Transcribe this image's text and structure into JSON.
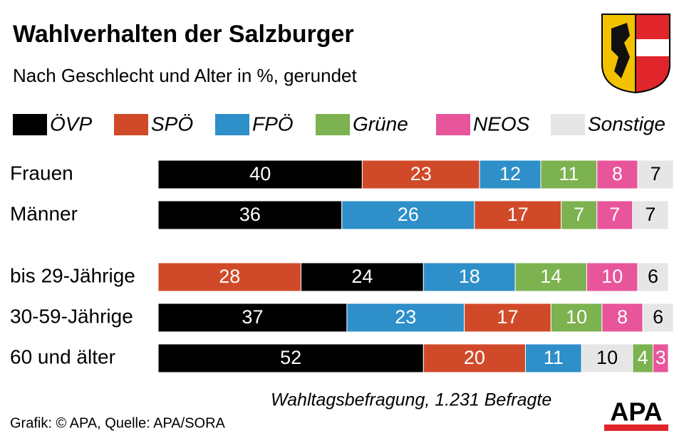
{
  "chart_data": {
    "type": "bar",
    "orientation": "horizontal",
    "stacked": true,
    "title": "Wahlverhalten der Salzburger",
    "subtitle": "Nach Geschlecht und Alter in %, gerundet",
    "legend": [
      {
        "name": "ÖVP",
        "color": "#000000"
      },
      {
        "name": "SPÖ",
        "color": "#d04a2a"
      },
      {
        "name": "FPÖ",
        "color": "#2e8fc9"
      },
      {
        "name": "Grüne",
        "color": "#7cb24f"
      },
      {
        "name": "NEOS",
        "color": "#e8559b"
      },
      {
        "name": "Sonstige",
        "color": "#e6e6e6"
      }
    ],
    "rows": [
      {
        "label": "Frauen",
        "segments": [
          {
            "party": "ÖVP",
            "value": 40
          },
          {
            "party": "SPÖ",
            "value": 23
          },
          {
            "party": "FPÖ",
            "value": 12
          },
          {
            "party": "Grüne",
            "value": 11
          },
          {
            "party": "NEOS",
            "value": 8
          },
          {
            "party": "Sonstige",
            "value": 7
          }
        ]
      },
      {
        "label": "Männer",
        "segments": [
          {
            "party": "ÖVP",
            "value": 36
          },
          {
            "party": "FPÖ",
            "value": 26
          },
          {
            "party": "SPÖ",
            "value": 17
          },
          {
            "party": "Grüne",
            "value": 7
          },
          {
            "party": "NEOS",
            "value": 7
          },
          {
            "party": "Sonstige",
            "value": 7
          }
        ]
      },
      {
        "label": "bis 29-Jährige",
        "segments": [
          {
            "party": "SPÖ",
            "value": 28
          },
          {
            "party": "ÖVP",
            "value": 24
          },
          {
            "party": "FPÖ",
            "value": 18
          },
          {
            "party": "Grüne",
            "value": 14
          },
          {
            "party": "NEOS",
            "value": 10
          },
          {
            "party": "Sonstige",
            "value": 6
          }
        ]
      },
      {
        "label": "30-59-Jährige",
        "segments": [
          {
            "party": "ÖVP",
            "value": 37
          },
          {
            "party": "FPÖ",
            "value": 23
          },
          {
            "party": "SPÖ",
            "value": 17
          },
          {
            "party": "Grüne",
            "value": 10
          },
          {
            "party": "NEOS",
            "value": 8
          },
          {
            "party": "Sonstige",
            "value": 6
          }
        ]
      },
      {
        "label": "60 und älter",
        "segments": [
          {
            "party": "ÖVP",
            "value": 52
          },
          {
            "party": "SPÖ",
            "value": 20
          },
          {
            "party": "FPÖ",
            "value": 11
          },
          {
            "party": "Sonstige",
            "value": 10
          },
          {
            "party": "Grüne",
            "value": 4
          },
          {
            "party": "NEOS",
            "value": 3
          }
        ]
      }
    ],
    "note": "Wahltagsbefragung, 1.231 Befragte",
    "source": "Grafik: © APA, Quelle: APA/SORA",
    "logo": "APA"
  }
}
